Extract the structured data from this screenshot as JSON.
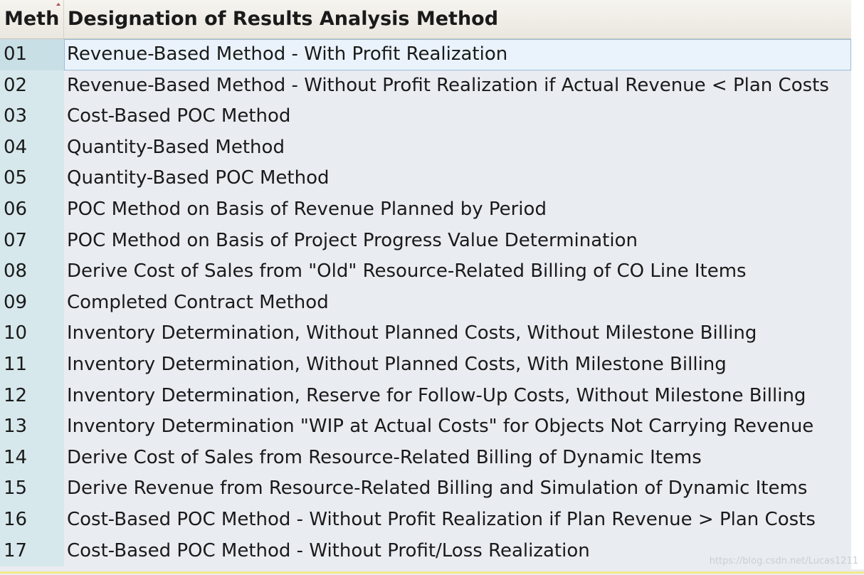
{
  "header": {
    "key_label": "Meth",
    "desc_label": "Designation of Results Analysis Method"
  },
  "rows": [
    {
      "key": "01",
      "desc": "Revenue-Based Method - With Profit Realization"
    },
    {
      "key": "02",
      "desc": "Revenue-Based Method - Without Profit Realization if Actual Revenue < Plan Costs"
    },
    {
      "key": "03",
      "desc": "Cost-Based POC Method"
    },
    {
      "key": "04",
      "desc": "Quantity-Based Method"
    },
    {
      "key": "05",
      "desc": "Quantity-Based POC Method"
    },
    {
      "key": "06",
      "desc": "POC Method on Basis of Revenue Planned by Period"
    },
    {
      "key": "07",
      "desc": "POC Method on Basis of Project Progress Value Determination"
    },
    {
      "key": "08",
      "desc": "Derive Cost of Sales from \"Old\" Resource-Related Billing of CO Line Items"
    },
    {
      "key": "09",
      "desc": "Completed Contract Method"
    },
    {
      "key": "10",
      "desc": "Inventory Determination, Without Planned Costs, Without Milestone Billing"
    },
    {
      "key": "11",
      "desc": "Inventory Determination, Without Planned Costs, With Milestone Billing"
    },
    {
      "key": "12",
      "desc": "Inventory Determination, Reserve for Follow-Up Costs, Without Milestone Billing"
    },
    {
      "key": "13",
      "desc": "Inventory Determination \"WIP at Actual Costs\" for Objects Not Carrying Revenue"
    },
    {
      "key": "14",
      "desc": "Derive Cost of Sales from Resource-Related Billing of Dynamic Items"
    },
    {
      "key": "15",
      "desc": "Derive Revenue from Resource-Related Billing and Simulation of Dynamic Items"
    },
    {
      "key": "16",
      "desc": "Cost-Based POC Method - Without Profit Realization if Plan Revenue > Plan Costs"
    },
    {
      "key": "17",
      "desc": "Cost-Based POC Method - Without Profit/Loss Realization"
    }
  ],
  "selected_row": "01",
  "watermark": "https://blog.csdn.net/Lucas1211",
  "colors": {
    "key_column_bg": "#d7e8ec",
    "grid_bg": "#e9ecf1",
    "selected_bg": "#eaf3fb",
    "sort_indicator": "#b14a4a"
  }
}
